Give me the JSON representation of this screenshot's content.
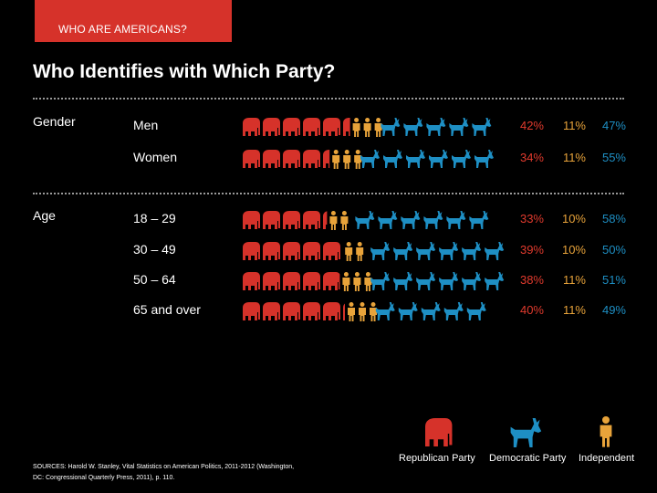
{
  "header": {
    "tab_label": "WHO ARE AMERICANS?"
  },
  "title": "Who Identifies with Which Party?",
  "sections": [
    {
      "label": "Gender"
    },
    {
      "label": "Age"
    }
  ],
  "colors": {
    "republican": "#d6322a",
    "democratic": "#1e8fc4",
    "independent": "#e8a33a",
    "background": "#000000"
  },
  "icons": {
    "republican": "elephant-icon",
    "democratic": "donkey-icon",
    "independent": "person-icon"
  },
  "chart_data": {
    "type": "bar",
    "title": "Who Identifies with Which Party?",
    "categories": [
      "Men",
      "Women",
      "18 – 29",
      "30 – 49",
      "50 – 64",
      "65 and over"
    ],
    "groups": [
      "Gender",
      "Gender",
      "Age",
      "Age",
      "Age",
      "Age"
    ],
    "stacked": true,
    "series": [
      {
        "name": "Republican Party",
        "values": [
          42,
          34,
          33,
          39,
          38,
          40
        ]
      },
      {
        "name": "Independent",
        "values": [
          11,
          11,
          10,
          10,
          11,
          11
        ]
      },
      {
        "name": "Democratic Party",
        "values": [
          47,
          55,
          58,
          50,
          51,
          49
        ]
      }
    ],
    "value_labels": [
      [
        "42%",
        "11%",
        "47%"
      ],
      [
        "34%",
        "11%",
        "55%"
      ],
      [
        "33%",
        "10%",
        "58%"
      ],
      [
        "39%",
        "10%",
        "50%"
      ],
      [
        "38%",
        "11%",
        "51%"
      ],
      [
        "40%",
        "11%",
        "49%"
      ]
    ],
    "legend": [
      "Republican Party",
      "Democratic Party",
      "Independent"
    ],
    "legend_position": "bottom-right",
    "grid": false
  },
  "sources": "SOURCES: Harold W. Stanley, Vital Statistics on American Politics, 2011-2012 (Washington, DC: Congressional Quarterly Press, 2011), p. 110."
}
